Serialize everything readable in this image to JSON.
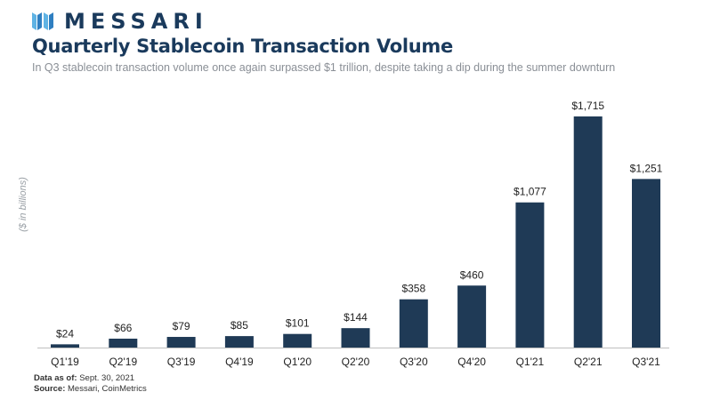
{
  "brand": {
    "logo_text": "MESSARI"
  },
  "header": {
    "title": "Quarterly Stablecoin Transaction Volume",
    "subtitle": "In Q3 stablecoin transaction volume once again surpassed $1 trillion, despite taking a dip during the summer downturn"
  },
  "footer": {
    "data_as_of_label": "Data as of:",
    "data_as_of_value": "Sept. 30, 2021",
    "source_label": "Source:",
    "source_value": "Messari, CoinMetrics"
  },
  "colors": {
    "bar": "#1f3a56",
    "axis": "#bfbfbf",
    "brand": "#1a3a5c"
  },
  "chart_data": {
    "type": "bar",
    "title": "Quarterly Stablecoin Transaction Volume",
    "xlabel": "",
    "ylabel": "($ in billions)",
    "categories": [
      "Q1'19",
      "Q2'19",
      "Q3'19",
      "Q4'19",
      "Q1'20",
      "Q2'20",
      "Q3'20",
      "Q4'20",
      "Q1'21",
      "Q2'21",
      "Q3'21"
    ],
    "values": [
      24,
      66,
      79,
      85,
      101,
      144,
      358,
      460,
      1077,
      1715,
      1251
    ],
    "data_labels": [
      "$24",
      "$66",
      "$79",
      "$85",
      "$101",
      "$144",
      "$358",
      "$460",
      "$1,077",
      "$1,715",
      "$1,251"
    ],
    "ylim": [
      0,
      1750
    ],
    "grid": false,
    "legend": "none"
  }
}
